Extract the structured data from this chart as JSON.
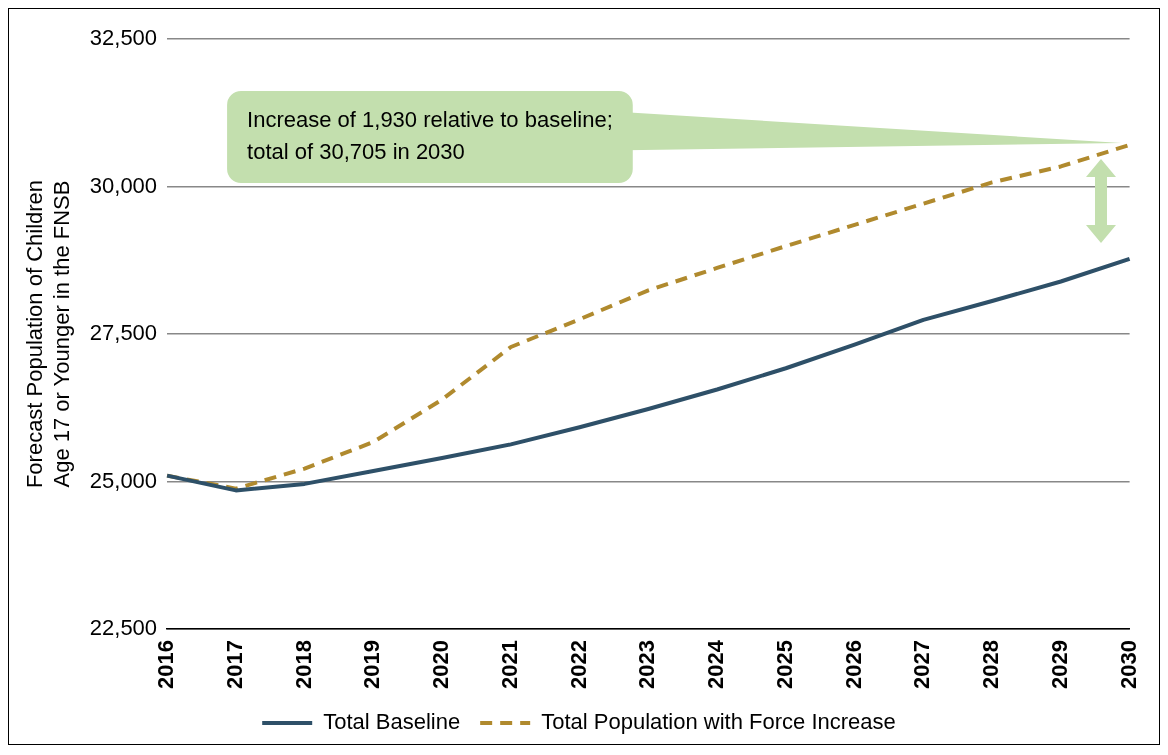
{
  "chart_data": {
    "type": "line",
    "ylabel": "Forecast Population of Children\nAge 17 or Younger in the FNSB",
    "categories": [
      "2016",
      "2017",
      "2018",
      "2019",
      "2020",
      "2021",
      "2022",
      "2023",
      "2024",
      "2025",
      "2026",
      "2027",
      "2028",
      "2029",
      "2030"
    ],
    "series": [
      {
        "name": "Total Baseline",
        "color": "#2e5068",
        "line_style": "solid",
        "values": [
          25100,
          24850,
          24960,
          25180,
          25400,
          25630,
          25920,
          26230,
          26560,
          26920,
          27320,
          27740,
          28060,
          28390,
          28775
        ]
      },
      {
        "name": "Total Population with Force Increase",
        "color": "#b08a2e",
        "line_style": "dashed",
        "values": [
          25100,
          24880,
          25220,
          25670,
          26390,
          27280,
          27750,
          28240,
          28620,
          28990,
          29350,
          29710,
          30070,
          30340,
          30705
        ]
      }
    ],
    "ylim": [
      22500,
      32500
    ],
    "yticks": [
      {
        "value": 22500,
        "label": "22,500"
      },
      {
        "value": 25000,
        "label": "25,000"
      },
      {
        "value": 27500,
        "label": "27,500"
      },
      {
        "value": 30000,
        "label": "30,000"
      },
      {
        "value": 32500,
        "label": "32,500"
      }
    ],
    "grid": "y",
    "legend": "bottom",
    "marker": "none",
    "annotations": [
      {
        "text": "Increase of 1,930 relative to baseline;\ntotal of 30,705 in 2030",
        "x": "2030",
        "y": 30705
      }
    ]
  }
}
